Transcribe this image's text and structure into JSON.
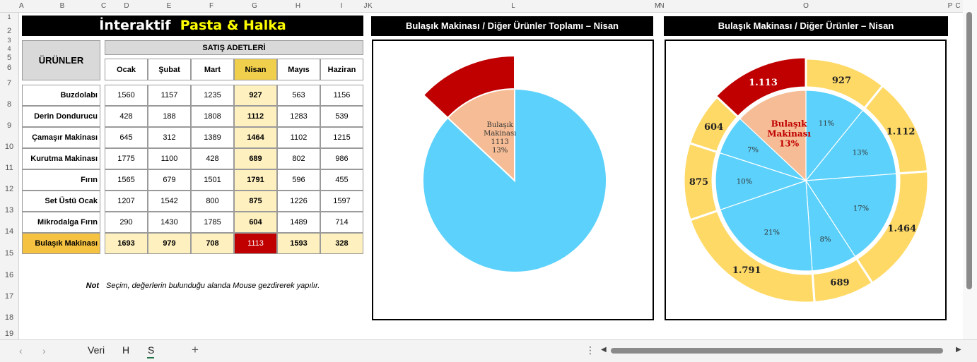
{
  "column_headers": [
    {
      "label": "A",
      "x": 27,
      "w": 6
    },
    {
      "label": "B",
      "x": 33,
      "w": 110
    },
    {
      "label": "C",
      "x": 143,
      "w": 6
    },
    {
      "label": "D",
      "x": 149,
      "w": 60
    },
    {
      "label": "E",
      "x": 209,
      "w": 60
    },
    {
      "label": "F",
      "x": 269,
      "w": 60
    },
    {
      "label": "G",
      "x": 329,
      "w": 62
    },
    {
      "label": "H",
      "x": 391,
      "w": 61
    },
    {
      "label": "I",
      "x": 452,
      "w": 62
    },
    {
      "label": "J",
      "x": 514,
      "w": 6
    },
    {
      "label": "K",
      "x": 520,
      "w": 6
    },
    {
      "label": "L",
      "x": 526,
      "w": 400
    },
    {
      "label": "M",
      "x": 926,
      "w": 6
    },
    {
      "label": "N",
      "x": 932,
      "w": 8
    },
    {
      "label": "O",
      "x": 940,
      "w": 400
    },
    {
      "label": "P",
      "x": 1340,
      "w": 8
    },
    {
      "label": "C",
      "x": 1348,
      "w": 14
    }
  ],
  "row_headers": [
    "1",
    "2",
    "3",
    "4",
    "5",
    "6",
    "7",
    "8",
    "9",
    "10",
    "11",
    "12",
    "13",
    "14",
    "15",
    "16",
    "17",
    "18",
    "19"
  ],
  "title": {
    "prefix": "İnteraktif",
    "highlight": "Pasta & Halka"
  },
  "table": {
    "products_header": "ÜRÜNLER",
    "sales_header": "SATIŞ ADETLERİ",
    "months": [
      "Ocak",
      "Şubat",
      "Mart",
      "Nisan",
      "Mayıs",
      "Haziran"
    ],
    "selected_month": "Nisan",
    "rows": [
      {
        "product": "Buzdolabı",
        "values": [
          "1560",
          "1157",
          "1235",
          "927",
          "563",
          "1156"
        ]
      },
      {
        "product": "Derin Dondurucu",
        "values": [
          "428",
          "188",
          "1808",
          "1112",
          "1283",
          "539"
        ]
      },
      {
        "product": "Çamaşır Makinası",
        "values": [
          "645",
          "312",
          "1389",
          "1464",
          "1102",
          "1215"
        ]
      },
      {
        "product": "Kurutma Makinası",
        "values": [
          "1775",
          "1100",
          "428",
          "689",
          "802",
          "986"
        ]
      },
      {
        "product": "Fırın",
        "values": [
          "1565",
          "679",
          "1501",
          "1791",
          "596",
          "455"
        ]
      },
      {
        "product": "Set Üstü Ocak",
        "values": [
          "1207",
          "1542",
          "800",
          "875",
          "1226",
          "1597"
        ]
      },
      {
        "product": "Mikrodalga Fırın",
        "values": [
          "290",
          "1430",
          "1785",
          "604",
          "1489",
          "714"
        ]
      },
      {
        "product": "Bulaşık Makinası",
        "values": [
          "1693",
          "979",
          "708",
          "1113",
          "1593",
          "328"
        ]
      }
    ]
  },
  "note": {
    "label": "Not",
    "text": "Seçim, değerlerin bulunduğu alanda Mouse gezdirerek yapılır."
  },
  "chart1": {
    "title": "Bulaşık Makinası / Diğer Ürünler Toplamı  –  Nisan",
    "label_lines": [
      "Bulaşık",
      "Makinası",
      "1113",
      "13%"
    ]
  },
  "chart2": {
    "title": "Bulaşık Makinası / Diğer Ürünler  –  Nisan",
    "center_label_lines": [
      "Bulaşık",
      "Makinası",
      "13%"
    ],
    "ring_labels": [
      "927",
      "1.112",
      "1.464",
      "689",
      "1.791",
      "875",
      "604",
      "1.113"
    ],
    "pie_percent_labels": [
      "11%",
      "13%",
      "17%",
      "8%",
      "21%",
      "10%",
      "7%"
    ]
  },
  "colors": {
    "highlight_red": "#c00000",
    "selected_month_bg": "#f0cf4c",
    "pale_yellow": "#fff1bf",
    "pie_blue": "#5bd1fb",
    "pie_peach": "#f5bc95",
    "ring_yellow": "#ffd966"
  },
  "chart_data": [
    {
      "type": "pie",
      "title": "Bulaşık Makinası / Diğer Ürünler Toplamı  –  Nisan",
      "categories": [
        "Bulaşık Makinası",
        "Diğer Ürünler"
      ],
      "values": [
        1113,
        7462
      ],
      "exploded": "Bulaşık Makinası"
    },
    {
      "type": "pie",
      "subtype": "doughnut-with-inner-pie",
      "title": "Bulaşık Makinası / Diğer Ürünler  –  Nisan",
      "categories": [
        "Buzdolabı",
        "Derin Dondurucu",
        "Çamaşır Makinası",
        "Kurutma Makinası",
        "Fırın",
        "Set Üstü Ocak",
        "Mikrodalga Fırın",
        "Bulaşık Makinası"
      ],
      "values": [
        927,
        1112,
        1464,
        689,
        1791,
        875,
        604,
        1113
      ],
      "percent_labels": [
        "11%",
        "13%",
        "17%",
        "8%",
        "21%",
        "10%",
        "7%",
        "13%"
      ]
    }
  ],
  "sheet_tabs": [
    "Veri",
    "H",
    "S"
  ],
  "active_tab": "S",
  "add_sheet": "+",
  "more_options": "⋮"
}
